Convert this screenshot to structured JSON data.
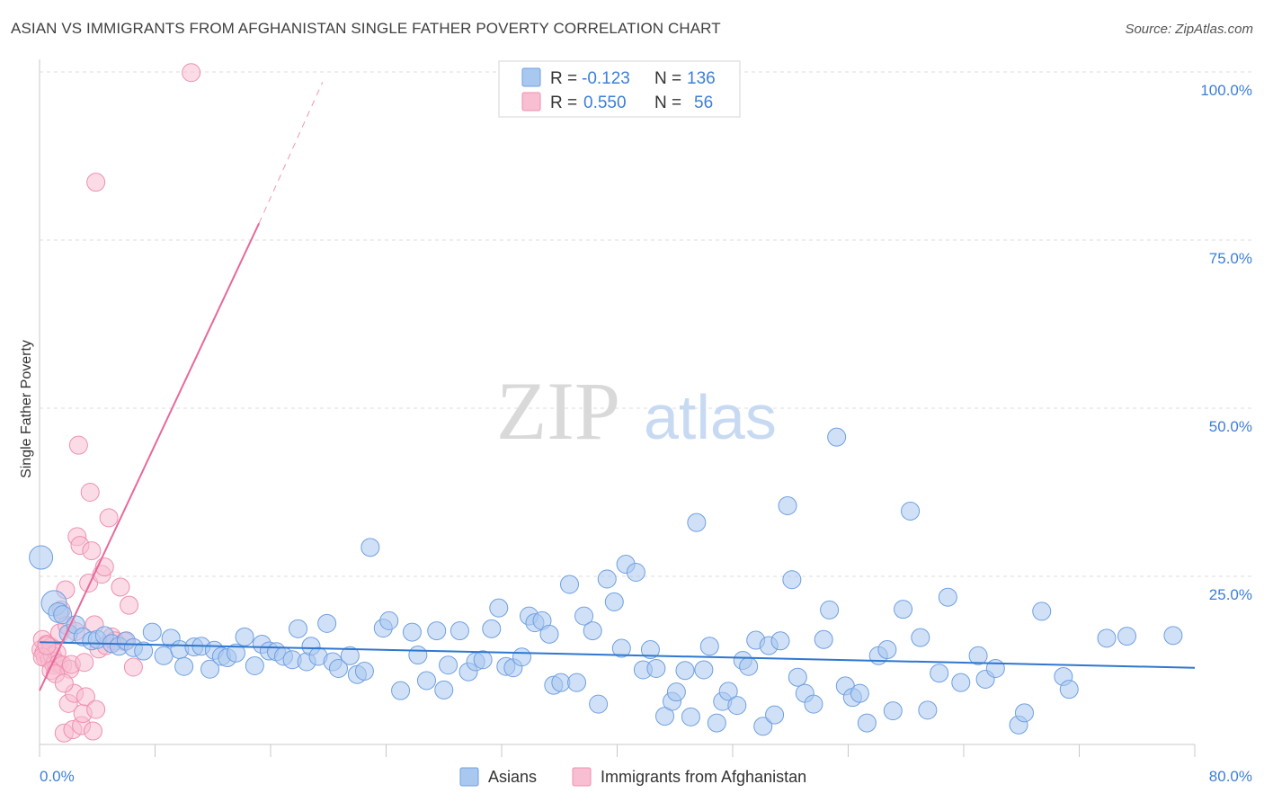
{
  "title": "ASIAN VS IMMIGRANTS FROM AFGHANISTAN SINGLE FATHER POVERTY CORRELATION CHART",
  "source": "Source: ZipAtlas.com",
  "watermark": {
    "zip": "ZIP",
    "atlas": "atlas"
  },
  "colors": {
    "asian_fill": "#a9c8f0",
    "asian_stroke": "#6f9fe0",
    "asian_line": "#2f77d0",
    "afghan_fill": "#f8bed1",
    "afghan_stroke": "#ef8fb0",
    "afghan_line": "#e8689a",
    "axis_label": "#3d7fd6",
    "grid": "#dcdcdc"
  },
  "legend": {
    "rows": [
      {
        "r_label": "R =",
        "r_value": "-0.123",
        "n_label": "N =",
        "n_value": "136"
      },
      {
        "r_label": "R =",
        "r_value": "0.550",
        "n_label": "N =",
        "n_value": "56"
      }
    ]
  },
  "chart_data": {
    "type": "scatter",
    "xlabel": "",
    "ylabel": "Single Father Poverty",
    "xlim": [
      0,
      80
    ],
    "ylim": [
      0,
      100
    ],
    "x_tick_labels": [
      "0.0%",
      "80.0%"
    ],
    "y_tick_labels": [
      "25.0%",
      "50.0%",
      "75.0%",
      "100.0%"
    ],
    "y_ticks": [
      25,
      50,
      75,
      100
    ],
    "grid": true,
    "legend_position": "top-center",
    "bottom_legend": [
      "Asians",
      "Immigrants from Afghanistan"
    ],
    "series": [
      {
        "name": "Asians",
        "trend": {
          "x": [
            0,
            80
          ],
          "y": [
            15.2,
            11.4
          ]
        },
        "points": [
          [
            0.1,
            27.8,
            13
          ],
          [
            1.0,
            21.0,
            14
          ],
          [
            1.3,
            19.6,
            11
          ],
          [
            1.6,
            19.3,
            10
          ],
          [
            2.0,
            16.5,
            10
          ],
          [
            2.5,
            17.8,
            10
          ],
          [
            3.0,
            16.0,
            10
          ],
          [
            3.6,
            15.4,
            10
          ],
          [
            4.0,
            15.6,
            10
          ],
          [
            4.5,
            16.2,
            10
          ],
          [
            5.0,
            15.0,
            10
          ],
          [
            5.5,
            14.6,
            10
          ],
          [
            6.0,
            15.4,
            10
          ],
          [
            6.5,
            14.4,
            10
          ],
          [
            7.2,
            13.9,
            10
          ],
          [
            7.8,
            16.7,
            10
          ],
          [
            8.6,
            13.2,
            10
          ],
          [
            9.1,
            15.8,
            10
          ],
          [
            9.7,
            14.1,
            10
          ],
          [
            10.0,
            11.6,
            10
          ],
          [
            10.7,
            14.5,
            10
          ],
          [
            11.2,
            14.6,
            10
          ],
          [
            11.8,
            11.2,
            10
          ],
          [
            12.1,
            14.0,
            10
          ],
          [
            12.6,
            13.1,
            10
          ],
          [
            13.0,
            12.9,
            10
          ],
          [
            13.6,
            13.6,
            10
          ],
          [
            14.2,
            16.0,
            10
          ],
          [
            14.9,
            11.7,
            10
          ],
          [
            15.4,
            14.9,
            10
          ],
          [
            15.9,
            13.9,
            10
          ],
          [
            16.4,
            13.8,
            10
          ],
          [
            16.9,
            13.1,
            10
          ],
          [
            17.5,
            12.6,
            10
          ],
          [
            17.9,
            17.2,
            10
          ],
          [
            18.5,
            12.3,
            10
          ],
          [
            18.8,
            14.6,
            10
          ],
          [
            19.3,
            13.1,
            10
          ],
          [
            19.9,
            18.0,
            10
          ],
          [
            20.3,
            12.3,
            10
          ],
          [
            20.7,
            11.3,
            10
          ],
          [
            21.5,
            13.2,
            10
          ],
          [
            22.0,
            10.4,
            10
          ],
          [
            22.5,
            10.9,
            10
          ],
          [
            22.9,
            29.3,
            10
          ],
          [
            23.8,
            17.3,
            10
          ],
          [
            24.2,
            18.4,
            10
          ],
          [
            25.0,
            8.0,
            10
          ],
          [
            25.8,
            16.7,
            10
          ],
          [
            26.2,
            13.3,
            10
          ],
          [
            26.8,
            9.5,
            10
          ],
          [
            27.5,
            16.9,
            10
          ],
          [
            28.0,
            8.1,
            10
          ],
          [
            28.3,
            11.8,
            10
          ],
          [
            29.1,
            16.9,
            10
          ],
          [
            29.7,
            10.8,
            10
          ],
          [
            30.2,
            12.3,
            10
          ],
          [
            30.7,
            12.6,
            10
          ],
          [
            31.3,
            17.2,
            10
          ],
          [
            31.8,
            20.3,
            10
          ],
          [
            32.3,
            11.6,
            10
          ],
          [
            32.8,
            11.4,
            10
          ],
          [
            33.4,
            13.0,
            10
          ],
          [
            33.9,
            19.1,
            10
          ],
          [
            34.3,
            18.1,
            10
          ],
          [
            34.8,
            18.4,
            10
          ],
          [
            35.3,
            16.4,
            10
          ],
          [
            35.6,
            8.8,
            10
          ],
          [
            36.1,
            9.2,
            10
          ],
          [
            36.7,
            23.8,
            10
          ],
          [
            37.2,
            9.2,
            10
          ],
          [
            37.7,
            19.1,
            10
          ],
          [
            38.3,
            16.9,
            10
          ],
          [
            38.7,
            6.0,
            10
          ],
          [
            39.3,
            24.6,
            10
          ],
          [
            39.8,
            21.2,
            10
          ],
          [
            40.3,
            14.3,
            10
          ],
          [
            40.6,
            26.8,
            10
          ],
          [
            41.3,
            25.6,
            10
          ],
          [
            41.8,
            11.1,
            10
          ],
          [
            42.3,
            14.1,
            10
          ],
          [
            42.7,
            11.3,
            10
          ],
          [
            43.3,
            4.2,
            10
          ],
          [
            43.8,
            6.4,
            10
          ],
          [
            44.1,
            7.8,
            10
          ],
          [
            44.7,
            11.0,
            10
          ],
          [
            45.1,
            4.1,
            10
          ],
          [
            45.5,
            33.0,
            10
          ],
          [
            46.0,
            11.1,
            10
          ],
          [
            46.4,
            14.6,
            10
          ],
          [
            46.9,
            3.2,
            10
          ],
          [
            47.3,
            6.4,
            10
          ],
          [
            47.7,
            7.9,
            10
          ],
          [
            48.3,
            5.8,
            10
          ],
          [
            48.7,
            12.5,
            10
          ],
          [
            49.1,
            11.6,
            10
          ],
          [
            49.6,
            15.5,
            10
          ],
          [
            50.1,
            2.7,
            10
          ],
          [
            50.5,
            14.7,
            10
          ],
          [
            50.9,
            4.4,
            10
          ],
          [
            51.3,
            15.4,
            10
          ],
          [
            51.8,
            35.5,
            10
          ],
          [
            52.1,
            24.5,
            10
          ],
          [
            52.5,
            10.0,
            10
          ],
          [
            53.0,
            7.6,
            10
          ],
          [
            53.6,
            6.0,
            10
          ],
          [
            54.3,
            15.6,
            10
          ],
          [
            54.7,
            20.0,
            10
          ],
          [
            55.2,
            45.7,
            10
          ],
          [
            55.8,
            8.7,
            10
          ],
          [
            56.3,
            7.0,
            10
          ],
          [
            56.8,
            7.6,
            10
          ],
          [
            57.3,
            3.2,
            10
          ],
          [
            58.1,
            13.2,
            10
          ],
          [
            58.7,
            14.1,
            10
          ],
          [
            59.1,
            5.0,
            10
          ],
          [
            59.8,
            20.1,
            10
          ],
          [
            60.3,
            34.7,
            10
          ],
          [
            61.0,
            15.9,
            10
          ],
          [
            61.5,
            5.1,
            10
          ],
          [
            62.3,
            10.6,
            10
          ],
          [
            62.9,
            21.9,
            10
          ],
          [
            63.8,
            9.2,
            10
          ],
          [
            65.0,
            13.2,
            10
          ],
          [
            65.5,
            9.7,
            10
          ],
          [
            66.2,
            11.3,
            10
          ],
          [
            67.8,
            2.9,
            10
          ],
          [
            68.2,
            4.7,
            10
          ],
          [
            69.4,
            19.8,
            10
          ],
          [
            70.9,
            10.1,
            10
          ],
          [
            71.3,
            8.2,
            10
          ],
          [
            73.9,
            15.8,
            10
          ],
          [
            75.3,
            16.1,
            10
          ],
          [
            78.5,
            16.2,
            10
          ]
        ]
      },
      {
        "name": "Immigrants from Afghanistan",
        "trend": {
          "x": [
            0,
            15.2
          ],
          "y": [
            8.0,
            77.5
          ]
        },
        "trend_dashed": {
          "x": [
            15.2,
            19.6
          ],
          "y": [
            77.5,
            98.5
          ]
        },
        "points": [
          [
            0.1,
            14.1,
            10
          ],
          [
            0.2,
            15.6,
            10
          ],
          [
            0.3,
            13.6,
            10
          ],
          [
            0.4,
            12.9,
            10
          ],
          [
            0.5,
            14.9,
            10
          ],
          [
            0.6,
            13.4,
            10
          ],
          [
            0.7,
            12.6,
            10
          ],
          [
            0.8,
            14.5,
            10
          ],
          [
            0.9,
            13.2,
            10
          ],
          [
            1.0,
            11.8,
            10
          ],
          [
            1.1,
            12.3,
            10
          ],
          [
            1.2,
            13.6,
            10
          ],
          [
            1.3,
            12.0,
            10
          ],
          [
            1.4,
            16.6,
            10
          ],
          [
            1.5,
            20.0,
            10
          ],
          [
            1.6,
            11.8,
            10
          ],
          [
            1.7,
            1.7,
            10
          ],
          [
            1.8,
            23.0,
            10
          ],
          [
            1.9,
            17.7,
            10
          ],
          [
            2.0,
            6.1,
            10
          ],
          [
            2.1,
            11.2,
            10
          ],
          [
            2.2,
            11.9,
            10
          ],
          [
            2.3,
            2.2,
            10
          ],
          [
            2.4,
            7.6,
            10
          ],
          [
            2.5,
            16.8,
            10
          ],
          [
            2.6,
            30.9,
            10
          ],
          [
            2.7,
            44.5,
            10
          ],
          [
            2.8,
            29.6,
            10
          ],
          [
            2.9,
            2.8,
            10
          ],
          [
            3.0,
            4.6,
            10
          ],
          [
            3.1,
            12.2,
            10
          ],
          [
            3.2,
            7.1,
            10
          ],
          [
            3.4,
            24.0,
            10
          ],
          [
            3.5,
            37.5,
            10
          ],
          [
            3.6,
            28.8,
            10
          ],
          [
            3.7,
            2.0,
            10
          ],
          [
            3.8,
            17.8,
            10
          ],
          [
            3.9,
            5.2,
            10
          ],
          [
            4.1,
            14.2,
            10
          ],
          [
            4.3,
            25.3,
            10
          ],
          [
            4.5,
            26.4,
            10
          ],
          [
            4.6,
            14.7,
            10
          ],
          [
            4.8,
            33.7,
            10
          ],
          [
            5.0,
            16.0,
            10
          ],
          [
            5.2,
            15.4,
            10
          ],
          [
            5.6,
            23.4,
            10
          ],
          [
            5.9,
            15.3,
            10
          ],
          [
            6.2,
            20.7,
            10
          ],
          [
            6.5,
            11.5,
            10
          ],
          [
            0.2,
            13.0,
            10
          ],
          [
            0.5,
            14.7,
            10
          ],
          [
            0.8,
            11.0,
            10
          ],
          [
            1.1,
            10.5,
            10
          ],
          [
            1.7,
            9.1,
            10
          ],
          [
            3.9,
            83.6,
            10
          ],
          [
            10.5,
            99.9,
            10
          ]
        ]
      }
    ]
  }
}
